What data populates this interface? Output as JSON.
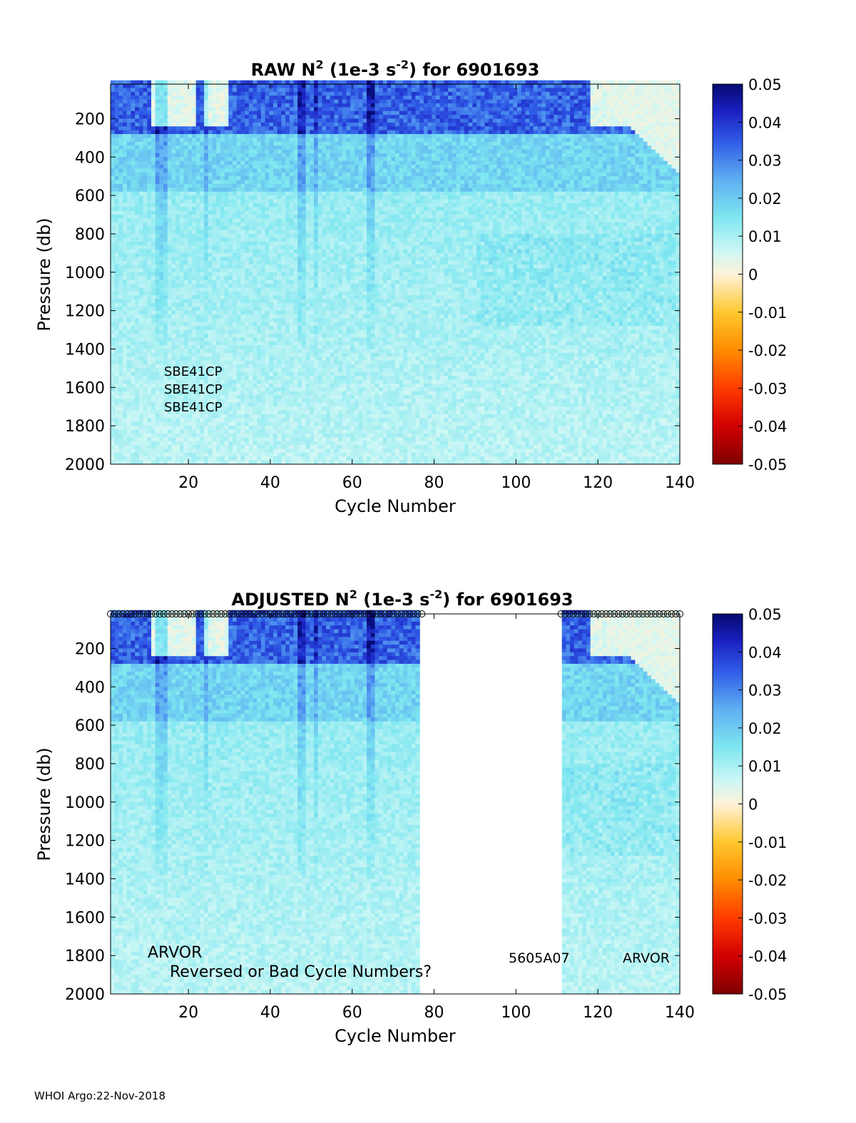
{
  "chart_data": [
    {
      "type": "heatmap",
      "title_prefix": "RAW N",
      "title_sup1": "2",
      "title_mid": " (1e-3 s",
      "title_sup2": "-2",
      "title_suffix": ") for 6901693",
      "xlabel": "Cycle Number",
      "ylabel": "Pressure (db)",
      "xlim": [
        1,
        140
      ],
      "ylim": [
        2000,
        20
      ],
      "xticks": [
        "20",
        "40",
        "60",
        "80",
        "100",
        "120",
        "140"
      ],
      "yticks": [
        "200",
        "400",
        "600",
        "800",
        "1000",
        "1200",
        "1400",
        "1600",
        "1800",
        "2000"
      ],
      "colorbar": {
        "min": -0.05,
        "max": 0.05,
        "ticks": [
          "0.05",
          "0.04",
          "0.03",
          "0.02",
          "0.01",
          "0",
          "-0.01",
          "-0.02",
          "-0.03",
          "-0.04",
          "-0.05"
        ]
      },
      "annotations": [
        "SBE41CP",
        "SBE41CP",
        "SBE41CP"
      ],
      "missing_cycles": [],
      "flagged_cycles_marker": "none"
    },
    {
      "type": "heatmap",
      "title_prefix": "ADJUSTED N",
      "title_sup1": "2",
      "title_mid": " (1e-3 s",
      "title_sup2": "-2",
      "title_suffix": ") for 6901693",
      "xlabel": "Cycle Number",
      "ylabel": "Pressure (db)",
      "xlim": [
        1,
        140
      ],
      "ylim": [
        2000,
        20
      ],
      "xticks": [
        "20",
        "40",
        "60",
        "80",
        "100",
        "120",
        "140"
      ],
      "yticks": [
        "200",
        "400",
        "600",
        "800",
        "1000",
        "1200",
        "1400",
        "1600",
        "1800",
        "2000"
      ],
      "colorbar": {
        "min": -0.05,
        "max": 0.05,
        "ticks": [
          "0.05",
          "0.04",
          "0.03",
          "0.02",
          "0.01",
          "0",
          "-0.01",
          "-0.02",
          "-0.03",
          "-0.04",
          "-0.05"
        ]
      },
      "annotations": [
        "ARVOR",
        "Reversed or Bad Cycle Numbers?",
        "5605A07",
        "ARVOR"
      ],
      "missing_cycles": [
        [
          77,
          111
        ]
      ],
      "flagged_cycles_marker": "circles at top"
    }
  ],
  "footer": "WHOI Argo:22-Nov-2018"
}
